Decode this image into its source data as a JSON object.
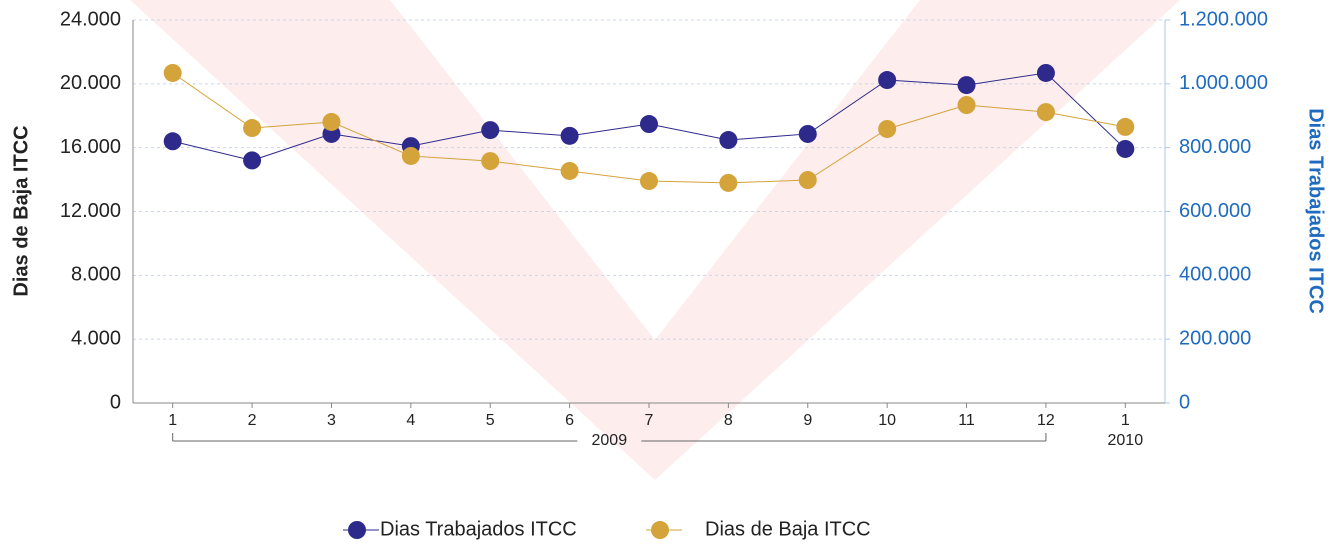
{
  "chart_data": {
    "type": "line",
    "y_axis_label": "Dias de Baja ITCC",
    "y2_axis_label": "Dias Trabajados ITCC",
    "categories": [
      "1",
      "2",
      "3",
      "4",
      "5",
      "6",
      "7",
      "8",
      "9",
      "10",
      "11",
      "12",
      "1"
    ],
    "years": [
      "2009",
      "2009",
      "2009",
      "2009",
      "2009",
      "2009",
      "2009",
      "2009",
      "2009",
      "2009",
      "2009",
      "2009",
      "2010"
    ],
    "ylim": [
      0,
      24000
    ],
    "yticks": [
      0,
      {
        "value": 4000,
        "label": "4.000"
      },
      {
        "value": 8000,
        "label": "8.000"
      },
      {
        "value": 12000,
        "label": "12.000"
      },
      {
        "value": 16000,
        "label": "16.000"
      },
      {
        "value": 20000,
        "label": "20.000"
      },
      {
        "value": 24000,
        "label": "24.000"
      }
    ],
    "y2lim": [
      0,
      1200000
    ],
    "y2ticks": [
      0,
      {
        "value": 200000,
        "label": "200.000"
      },
      {
        "value": 400000,
        "label": "400.000"
      },
      {
        "value": 600000,
        "label": "600.000"
      },
      {
        "value": 800000,
        "label": "800.000"
      },
      {
        "value": 1000000,
        "label": "1.000.000"
      },
      {
        "value": 1200000,
        "label": "1.200.000"
      }
    ],
    "grid": true,
    "legend": "bottom",
    "series": [
      {
        "name": "Dias Trabajados ITCC",
        "color": "#2e2a8c",
        "axis": "y2",
        "values": [
          820000,
          760000,
          843000,
          805000,
          855000,
          837000,
          874000,
          824000,
          843000,
          1012000,
          996000,
          1034000,
          796000
        ]
      },
      {
        "name": "Dias de Baja ITCC",
        "color": "#d4a33a",
        "axis": "y",
        "values": [
          20680,
          17230,
          17610,
          15480,
          15160,
          14540,
          13910,
          13790,
          13970,
          17170,
          18670,
          18230,
          17300
        ]
      }
    ]
  }
}
